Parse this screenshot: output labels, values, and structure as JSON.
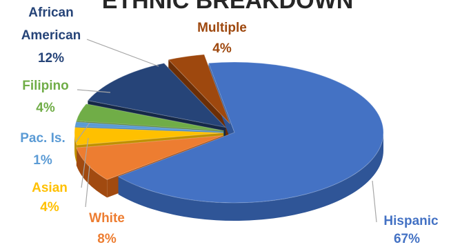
{
  "chart_data": {
    "type": "pie",
    "style": "exploded 3D pie",
    "title": "ETHNIC BREAKDOWN",
    "slices": [
      {
        "name": "Hispanic",
        "value": 67,
        "value_label": "67%",
        "color": "#4472C4",
        "side": "#2F5597",
        "label_color": "#4472C4"
      },
      {
        "name": "White",
        "value": 8,
        "value_label": "8%",
        "color": "#ED7D31",
        "side": "#A14A10",
        "label_color": "#ED7D31"
      },
      {
        "name": "Asian",
        "value": 4,
        "value_label": "4%",
        "color": "#FFC000",
        "side": "#BF9000",
        "label_color": "#FFC000"
      },
      {
        "name": "Pac. Is.",
        "value": 1,
        "value_label": "1%",
        "color": "#5B9BD5",
        "side": "#2E75B6",
        "label_color": "#5B9BD5"
      },
      {
        "name": "Filipino",
        "value": 4,
        "value_label": "4%",
        "color": "#70AD47",
        "side": "#4E7A31",
        "label_color": "#70AD47"
      },
      {
        "name": "African American",
        "value": 12,
        "value_label": "12%",
        "color": "#264478",
        "side": "#152847",
        "label_color": "#264478"
      },
      {
        "name": "Multiple",
        "value": 4,
        "value_label": "4%",
        "color": "#9E480E",
        "side": "#6B2E06",
        "label_color": "#9E480E"
      }
    ],
    "legend": "none"
  }
}
